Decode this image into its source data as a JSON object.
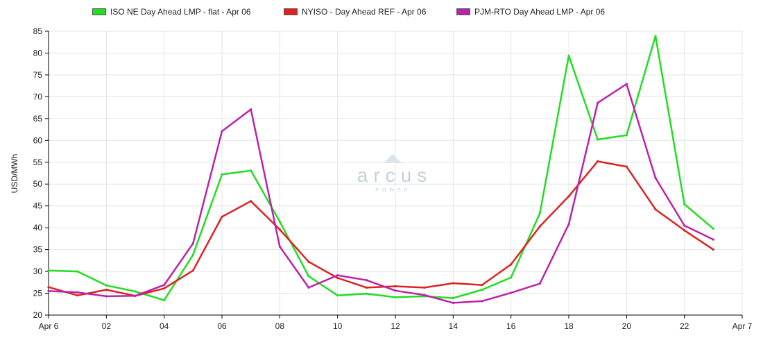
{
  "chart_data": {
    "type": "line",
    "ylabel": "USD/MWh",
    "xlabel": "",
    "ylim": [
      20,
      85
    ],
    "yticks": [
      20,
      25,
      30,
      35,
      40,
      45,
      50,
      55,
      60,
      65,
      70,
      75,
      80,
      85
    ],
    "xlim": [
      0,
      24
    ],
    "xtick_values": [
      0,
      2,
      4,
      6,
      8,
      10,
      12,
      14,
      16,
      18,
      20,
      22,
      24
    ],
    "xtick_labels": [
      "Apr 6",
      "02",
      "04",
      "06",
      "08",
      "10",
      "12",
      "14",
      "16",
      "18",
      "20",
      "22",
      "Apr 7"
    ],
    "grid": true,
    "legend_position": "top",
    "x": [
      0,
      1,
      2,
      3,
      4,
      5,
      6,
      7,
      8,
      9,
      10,
      11,
      12,
      13,
      14,
      15,
      16,
      17,
      18,
      19,
      20,
      21,
      22,
      23
    ],
    "series": [
      {
        "name": "ISO NE Day Ahead LMP - flat - Apr 06",
        "color": "#22dd22",
        "values": [
          30.2,
          30.0,
          26.8,
          25.4,
          23.4,
          33.8,
          52.2,
          53.1,
          41.4,
          28.9,
          24.5,
          24.9,
          24.1,
          24.3,
          23.9,
          25.8,
          28.6,
          43.3,
          79.4,
          60.2,
          61.2,
          83.9,
          45.4,
          39.8
        ]
      },
      {
        "name": "NYISO - Day Ahead REF - Apr 06",
        "color": "#dd2222",
        "values": [
          26.4,
          24.5,
          25.8,
          24.4,
          26.1,
          30.2,
          42.5,
          46.1,
          39.6,
          32.2,
          28.5,
          26.3,
          26.6,
          26.3,
          27.3,
          26.9,
          31.6,
          40.3,
          47.2,
          55.2,
          54.0,
          44.2,
          39.4,
          35.0
        ]
      },
      {
        "name": "PJM-RTO Day Ahead LMP - Apr 06",
        "color": "#bb22aa",
        "values": [
          25.5,
          25.2,
          24.3,
          24.4,
          26.9,
          36.4,
          62.1,
          67.1,
          35.7,
          26.3,
          29.1,
          28.0,
          25.6,
          24.6,
          22.8,
          23.2,
          25.1,
          27.2,
          40.8,
          68.6,
          72.9,
          51.4,
          40.5,
          37.3
        ]
      }
    ]
  },
  "watermark": {
    "brand": "arcus",
    "sub": "POWER"
  }
}
